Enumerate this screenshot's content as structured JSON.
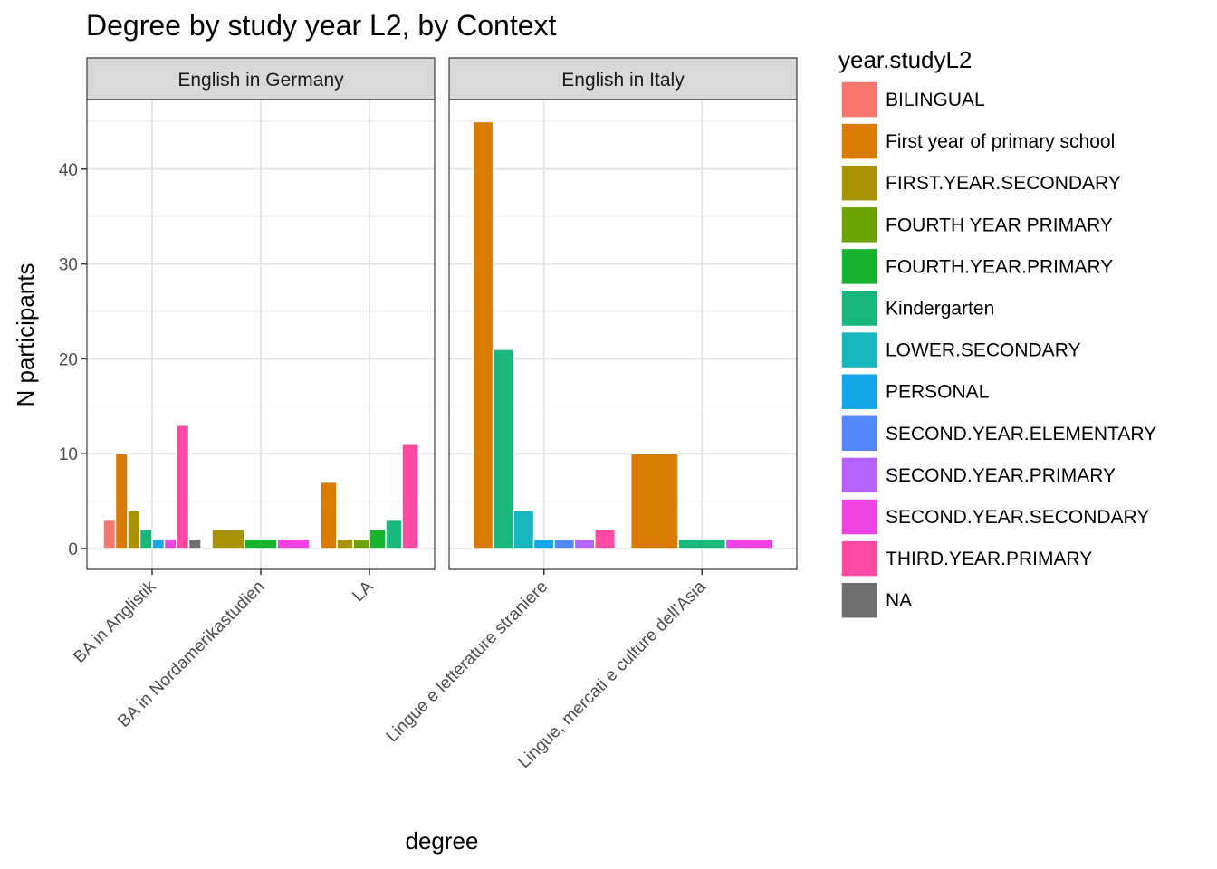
{
  "chart_data": {
    "type": "bar",
    "title": "Degree by study year L2, by Context",
    "xlabel": "degree",
    "ylabel": "N participants",
    "ylim": [
      0,
      47
    ],
    "yticks": [
      0,
      10,
      20,
      30,
      40
    ],
    "grid": true,
    "legend": {
      "title": "year.studyL2",
      "placement": "right",
      "items": [
        {
          "label": "BILINGUAL",
          "color": "#F8766D"
        },
        {
          "label": "First year of primary school",
          "color": "#D97B00"
        },
        {
          "label": "FIRST.YEAR.SECONDARY",
          "color": "#A89200"
        },
        {
          "label": "FOURTH YEAR PRIMARY",
          "color": "#6BA300"
        },
        {
          "label": "FOURTH.YEAR.PRIMARY",
          "color": "#16B32E"
        },
        {
          "label": "Kindergarten",
          "color": "#19B77C"
        },
        {
          "label": "LOWER.SECONDARY",
          "color": "#17B5BC"
        },
        {
          "label": "PERSONAL",
          "color": "#14A6E8"
        },
        {
          "label": "SECOND.YEAR.ELEMENTARY",
          "color": "#5488FF"
        },
        {
          "label": "SECOND.YEAR.PRIMARY",
          "color": "#B563FF"
        },
        {
          "label": "SECOND.YEAR.SECONDARY",
          "color": "#EE42E4"
        },
        {
          "label": "THIRD.YEAR.PRIMARY",
          "color": "#FF4AA3"
        },
        {
          "label": "NA",
          "color": "#6E6E6E"
        }
      ]
    },
    "facets": [
      {
        "label": "English in Germany",
        "categories": [
          {
            "name": "BA in Anglistik",
            "bars": [
              {
                "group": "BILINGUAL",
                "value": 3
              },
              {
                "group": "First year of primary school",
                "value": 10
              },
              {
                "group": "FIRST.YEAR.SECONDARY",
                "value": 4
              },
              {
                "group": "Kindergarten",
                "value": 2
              },
              {
                "group": "PERSONAL",
                "value": 1
              },
              {
                "group": "SECOND.YEAR.SECONDARY",
                "value": 1
              },
              {
                "group": "THIRD.YEAR.PRIMARY",
                "value": 13
              },
              {
                "group": "NA",
                "value": 1
              }
            ]
          },
          {
            "name": "BA in Nordamerikastudien",
            "bars": [
              {
                "group": "FIRST.YEAR.SECONDARY",
                "value": 2
              },
              {
                "group": "FOURTH.YEAR.PRIMARY",
                "value": 1
              },
              {
                "group": "SECOND.YEAR.SECONDARY",
                "value": 1
              }
            ]
          },
          {
            "name": "LA",
            "bars": [
              {
                "group": "First year of primary school",
                "value": 7
              },
              {
                "group": "FIRST.YEAR.SECONDARY",
                "value": 1
              },
              {
                "group": "FOURTH YEAR PRIMARY",
                "value": 1
              },
              {
                "group": "FOURTH.YEAR.PRIMARY",
                "value": 2
              },
              {
                "group": "Kindergarten",
                "value": 3
              },
              {
                "group": "THIRD.YEAR.PRIMARY",
                "value": 11
              }
            ]
          }
        ]
      },
      {
        "label": "English in Italy",
        "categories": [
          {
            "name": "Lingue e letterature straniere",
            "bars": [
              {
                "group": "First year of primary school",
                "value": 45
              },
              {
                "group": "Kindergarten",
                "value": 21
              },
              {
                "group": "LOWER.SECONDARY",
                "value": 4
              },
              {
                "group": "PERSONAL",
                "value": 1
              },
              {
                "group": "SECOND.YEAR.ELEMENTARY",
                "value": 1
              },
              {
                "group": "SECOND.YEAR.PRIMARY",
                "value": 1
              },
              {
                "group": "THIRD.YEAR.PRIMARY",
                "value": 2
              }
            ]
          },
          {
            "name": "Lingue, mercati e culture dell'Asia",
            "bars": [
              {
                "group": "First year of primary school",
                "value": 10
              },
              {
                "group": "Kindergarten",
                "value": 1
              },
              {
                "group": "SECOND.YEAR.SECONDARY",
                "value": 1
              }
            ]
          }
        ]
      }
    ]
  }
}
